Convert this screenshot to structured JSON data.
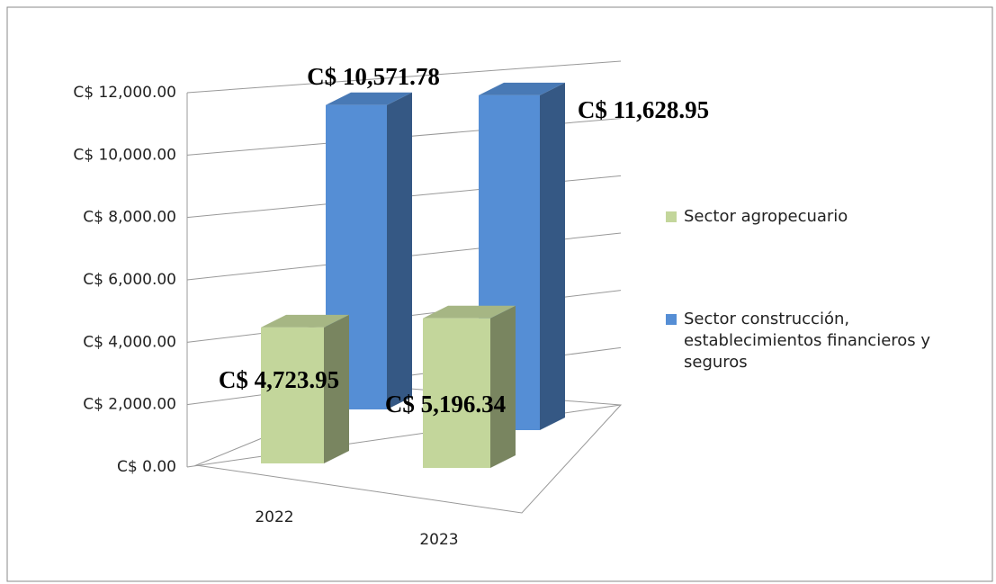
{
  "chart_data": {
    "type": "bar3d",
    "categories": [
      "2022",
      "2023"
    ],
    "series": [
      {
        "name": "Sector agropecuario",
        "color": "#c3d69b",
        "values": [
          4723.95,
          5196.34
        ],
        "value_labels": [
          "C$ 4,723.95",
          "C$ 5,196.34"
        ]
      },
      {
        "name": "Sector construcción, establecimientos financieros y seguros",
        "color": "#558ed5",
        "values": [
          10571.78,
          11628.95
        ],
        "value_labels": [
          "C$ 10,571.78",
          "C$ 11,628.95"
        ]
      }
    ],
    "ylim": [
      0,
      12000
    ],
    "yticks": [
      {
        "value": 0,
        "label": "C$ 0.00"
      },
      {
        "value": 2000,
        "label": "C$ 2,000.00"
      },
      {
        "value": 4000,
        "label": "C$ 4,000.00"
      },
      {
        "value": 6000,
        "label": "C$ 6,000.00"
      },
      {
        "value": 8000,
        "label": "C$ 8,000.00"
      },
      {
        "value": 10000,
        "label": "C$ 10,000.00"
      },
      {
        "value": 12000,
        "label": "C$ 12,000.00"
      }
    ],
    "grid": true,
    "legend": "right"
  }
}
